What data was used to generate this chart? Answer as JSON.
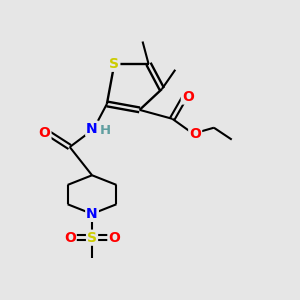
{
  "background_color": "#e6e6e6",
  "atom_colors": {
    "S": "#cccc00",
    "N": "#0000ff",
    "O": "#ff0000",
    "C": "#000000",
    "H": "#5f9ea0"
  },
  "bond_color": "#000000",
  "figsize": [
    3.0,
    3.0
  ],
  "dpi": 100,
  "xlim": [
    0,
    10
  ],
  "ylim": [
    0,
    10
  ]
}
